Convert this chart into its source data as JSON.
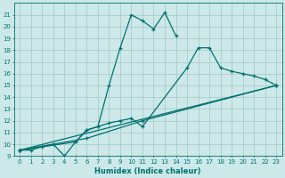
{
  "xlabel": "Humidex (Indice chaleur)",
  "bg_color": "#cce8e8",
  "grid_color": "#aacccc",
  "line_color": "#007070",
  "xlim": [
    -0.5,
    23.5
  ],
  "ylim": [
    9,
    22
  ],
  "xticks": [
    0,
    1,
    2,
    3,
    4,
    5,
    6,
    7,
    8,
    9,
    10,
    11,
    12,
    13,
    14,
    15,
    16,
    17,
    18,
    19,
    20,
    21,
    22,
    23
  ],
  "yticks": [
    9,
    10,
    11,
    12,
    13,
    14,
    15,
    16,
    17,
    18,
    19,
    20,
    21
  ],
  "lines": [
    {
      "x": [
        0,
        1,
        2,
        3,
        4,
        5,
        6,
        7,
        8,
        9,
        10,
        11,
        12,
        13,
        14
      ],
      "y": [
        9.5,
        9.5,
        9.8,
        10.0,
        9.0,
        10.2,
        11.2,
        11.5,
        15.0,
        18.2,
        21.0,
        20.5,
        19.8,
        21.2,
        19.2
      ]
    },
    {
      "x": [
        0,
        5,
        6,
        7,
        8,
        9,
        10,
        11,
        15,
        16,
        17,
        18,
        19,
        20,
        21,
        22,
        23
      ],
      "y": [
        9.5,
        10.2,
        11.2,
        11.5,
        11.8,
        12.0,
        12.2,
        11.5,
        16.5,
        18.2,
        18.2,
        16.5,
        16.2,
        16.0,
        15.8,
        15.5,
        15.0
      ]
    },
    {
      "x": [
        0,
        23
      ],
      "y": [
        9.5,
        15.0
      ]
    },
    {
      "x": [
        0,
        6,
        11,
        23
      ],
      "y": [
        9.5,
        10.5,
        12.0,
        15.0
      ]
    }
  ],
  "marker_sets": [
    {
      "x": [
        0,
        1,
        2,
        3,
        4,
        5,
        6,
        7,
        8,
        9,
        10,
        11,
        12,
        13,
        14
      ],
      "y": [
        9.5,
        9.5,
        9.8,
        10.0,
        9.0,
        10.2,
        11.2,
        11.5,
        15.0,
        18.2,
        21.0,
        20.5,
        19.8,
        21.2,
        19.2
      ]
    },
    {
      "x": [
        0,
        5,
        6,
        7,
        8,
        9,
        10,
        11,
        15,
        16,
        17,
        18,
        19,
        20,
        21,
        22,
        23
      ],
      "y": [
        9.5,
        10.2,
        11.2,
        11.5,
        11.8,
        12.0,
        12.2,
        11.5,
        16.5,
        18.2,
        18.2,
        16.5,
        16.2,
        16.0,
        15.8,
        15.5,
        15.0
      ]
    },
    {
      "x": [
        0,
        23
      ],
      "y": [
        9.5,
        15.0
      ]
    },
    {
      "x": [
        0,
        6,
        11,
        23
      ],
      "y": [
        9.5,
        10.5,
        12.0,
        15.0
      ]
    }
  ]
}
